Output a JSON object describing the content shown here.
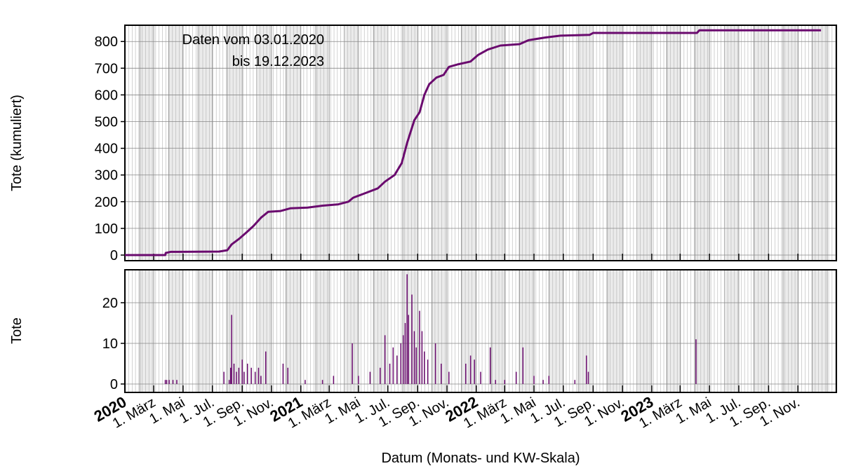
{
  "chart_data": [
    {
      "type": "line",
      "ylabel": "Tote (kumuliert)",
      "annotation": [
        "Daten vom 03.01.2020",
        "bis 19.12.2023"
      ],
      "xlim": [
        "2020-01-01",
        "2024-01-20"
      ],
      "ylim": [
        -21,
        861
      ],
      "yticks": [
        0,
        100,
        200,
        300,
        400,
        500,
        600,
        700,
        800
      ],
      "grid": "weekly",
      "color": "#6a0a6e",
      "series": [
        {
          "name": "Tote (kumuliert)",
          "color": "#6a0a6e",
          "x": [
            "2020-01-01",
            "2020-03-25",
            "2020-03-26",
            "2020-04-05",
            "2020-07-15",
            "2020-08-01",
            "2020-08-10",
            "2020-08-25",
            "2020-09-10",
            "2020-09-25",
            "2020-10-10",
            "2020-10-25",
            "2020-11-20",
            "2020-12-10",
            "2021-01-15",
            "2021-02-15",
            "2021-03-20",
            "2021-04-10",
            "2021-04-20",
            "2021-05-15",
            "2021-06-10",
            "2021-06-25",
            "2021-07-15",
            "2021-07-30",
            "2021-08-10",
            "2021-08-25",
            "2021-09-05",
            "2021-09-15",
            "2021-09-25",
            "2021-10-10",
            "2021-10-25",
            "2021-11-05",
            "2021-11-25",
            "2021-12-20",
            "2022-01-05",
            "2022-01-25",
            "2022-02-20",
            "2022-04-01",
            "2022-04-20",
            "2022-05-25",
            "2022-06-25",
            "2022-08-25",
            "2022-09-01",
            "2023-04-05",
            "2023-04-10",
            "2023-12-19"
          ],
          "values": [
            0,
            0,
            8,
            12,
            13,
            18,
            40,
            60,
            85,
            110,
            140,
            162,
            165,
            175,
            178,
            185,
            190,
            200,
            215,
            232,
            250,
            275,
            300,
            345,
            420,
            505,
            535,
            600,
            640,
            665,
            675,
            705,
            715,
            725,
            750,
            770,
            785,
            790,
            805,
            815,
            822,
            825,
            832,
            832,
            842,
            842
          ]
        }
      ]
    },
    {
      "type": "bar",
      "ylabel": "Tote",
      "xlabel": "Datum (Monats- und KW-Skala)",
      "xlim": [
        "2020-01-01",
        "2024-01-20"
      ],
      "ylim": [
        -2.07,
        28.1
      ],
      "yticks": [
        0,
        10,
        20
      ],
      "xticks": [
        {
          "value": "2020-01-01",
          "label": "2020"
        },
        {
          "value": "2020-03-01",
          "label": "1. März"
        },
        {
          "value": "2020-05-01",
          "label": "1. Mai"
        },
        {
          "value": "2020-07-01",
          "label": "1. Jul."
        },
        {
          "value": "2020-09-01",
          "label": "1. Sep."
        },
        {
          "value": "2020-11-01",
          "label": "1. Nov."
        },
        {
          "value": "2021-01-01",
          "label": "2021"
        },
        {
          "value": "2021-03-01",
          "label": "1. März"
        },
        {
          "value": "2021-05-01",
          "label": "1. Mai"
        },
        {
          "value": "2021-07-01",
          "label": "1. Jul."
        },
        {
          "value": "2021-09-01",
          "label": "1. Sep."
        },
        {
          "value": "2021-11-01",
          "label": "1. Nov."
        },
        {
          "value": "2022-01-01",
          "label": "2022"
        },
        {
          "value": "2022-03-01",
          "label": "1. März"
        },
        {
          "value": "2022-05-01",
          "label": "1. Mai"
        },
        {
          "value": "2022-07-01",
          "label": "1. Jul."
        },
        {
          "value": "2022-09-01",
          "label": "1. Sep."
        },
        {
          "value": "2022-11-01",
          "label": "1. Nov."
        },
        {
          "value": "2023-01-01",
          "label": "2023"
        },
        {
          "value": "2023-03-01",
          "label": "1. März"
        },
        {
          "value": "2023-05-01",
          "label": "1. Mai"
        },
        {
          "value": "2023-07-01",
          "label": "1. Jul."
        },
        {
          "value": "2023-09-01",
          "label": "1. Sep."
        },
        {
          "value": "2023-11-01",
          "label": "1. Nov."
        }
      ],
      "grid": "weekly",
      "color": "#6a0a6e",
      "series": [
        {
          "name": "Tote",
          "color": "#6a0a6e",
          "x": [
            "2020-03-25",
            "2020-03-28",
            "2020-04-02",
            "2020-04-10",
            "2020-04-18",
            "2020-07-25",
            "2020-08-05",
            "2020-08-08",
            "2020-08-10",
            "2020-08-15",
            "2020-08-20",
            "2020-08-25",
            "2020-09-01",
            "2020-09-05",
            "2020-09-12",
            "2020-09-20",
            "2020-09-28",
            "2020-10-05",
            "2020-10-10",
            "2020-10-20",
            "2020-11-25",
            "2020-12-05",
            "2021-01-10",
            "2021-02-15",
            "2021-03-10",
            "2021-04-18",
            "2021-05-01",
            "2021-05-25",
            "2021-06-15",
            "2021-06-25",
            "2021-07-05",
            "2021-07-12",
            "2021-07-20",
            "2021-07-28",
            "2021-08-02",
            "2021-08-06",
            "2021-08-10",
            "2021-08-13",
            "2021-08-20",
            "2021-08-25",
            "2021-08-29",
            "2021-09-05",
            "2021-09-10",
            "2021-09-15",
            "2021-09-22",
            "2021-10-08",
            "2021-10-20",
            "2021-11-05",
            "2021-12-10",
            "2021-12-20",
            "2021-12-28",
            "2022-01-10",
            "2022-01-30",
            "2022-02-10",
            "2022-03-01",
            "2022-03-25",
            "2022-04-08",
            "2022-05-01",
            "2022-05-20",
            "2022-06-01",
            "2022-07-25",
            "2022-08-18",
            "2022-08-22",
            "2023-04-03"
          ],
          "values": [
            1,
            1,
            1,
            1,
            1,
            3,
            1,
            4,
            17,
            5,
            3,
            4,
            6,
            3,
            5,
            4,
            3,
            4,
            2,
            8,
            5,
            4,
            1,
            1,
            2,
            10,
            2,
            3,
            4,
            12,
            5,
            9,
            7,
            10,
            12,
            15,
            27,
            17,
            22,
            13,
            9,
            18,
            13,
            8,
            6,
            10,
            5,
            3,
            5,
            7,
            6,
            3,
            9,
            1,
            1,
            3,
            9,
            2,
            1,
            2,
            1,
            7,
            3,
            11
          ]
        }
      ]
    }
  ]
}
